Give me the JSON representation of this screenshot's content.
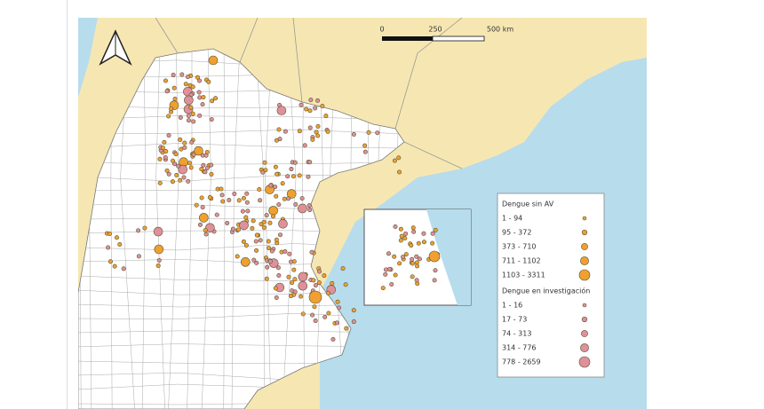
{
  "scale_bar": {
    "labels": [
      "0",
      "250",
      "500 km"
    ]
  },
  "legend": {
    "groups": [
      {
        "title": "Dengue sin AV",
        "items": [
          "1 - 94",
          "95 - 372",
          "373 - 710",
          "711 - 1102",
          "1103 - 3311"
        ]
      },
      {
        "title": "Dengue en investigación",
        "items": [
          "1 - 16",
          "17 - 73",
          "74 - 313",
          "314 - 776",
          "778 - 2659"
        ]
      }
    ]
  }
}
